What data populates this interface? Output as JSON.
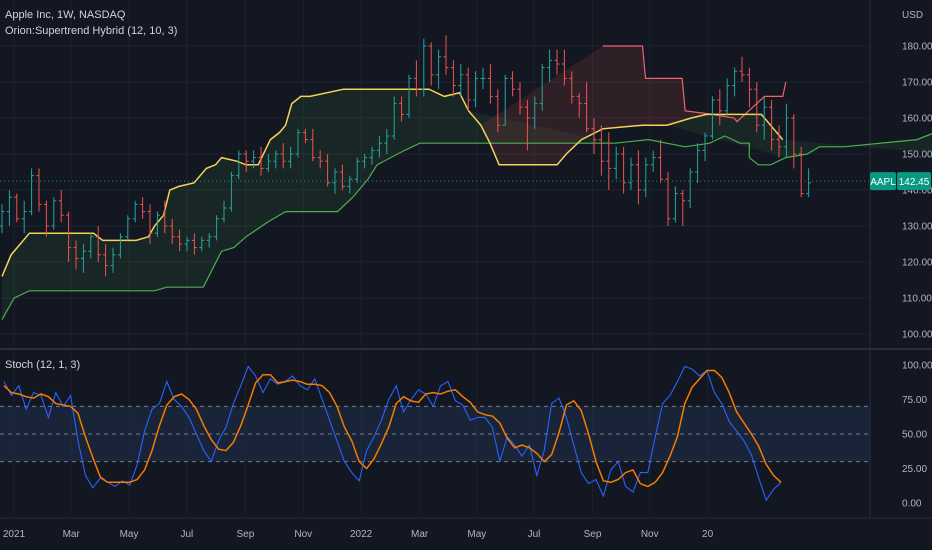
{
  "header": {
    "symbol_line": "Apple Inc, 1W, NASDAQ",
    "indicator_label": "Orion:Supertrend Hybrid (12, 10, 3)",
    "stoch_label": "Stoch (12, 1, 3)",
    "currency": "USD"
  },
  "price_tag": {
    "symbol": "AAPL",
    "value": "142.45",
    "color": "#089981"
  },
  "colors": {
    "background": "#131722",
    "up_bar": "#26a69a",
    "down_bar": "#ef5350",
    "supertrend_line": "#f5d35a",
    "lower_band": "#4caf50",
    "upper_band": "#f0626c",
    "stoch_k": "#2962ff",
    "stoch_d": "#f57c00",
    "stoch_band": "#1f2f4a"
  },
  "chart_data": [
    {
      "type": "ohlc",
      "title": "Apple Inc, 1W, NASDAQ",
      "ylabel": "USD",
      "ylim": [
        95,
        186
      ],
      "yticks": [
        100,
        110,
        120,
        130,
        140,
        150,
        160,
        170,
        180
      ],
      "xlabels": [
        "2021",
        "Mar",
        "May",
        "Jul",
        "Sep",
        "Nov",
        "2022",
        "Mar",
        "May",
        "Jul",
        "Sep",
        "Nov",
        "20"
      ],
      "last_price": 142.45,
      "bars": [
        [
          130,
          136,
          128,
          134
        ],
        [
          134,
          140,
          130,
          138
        ],
        [
          138,
          139,
          131,
          132
        ],
        [
          132,
          137,
          128,
          134
        ],
        [
          134,
          146,
          133,
          144
        ],
        [
          144,
          146,
          134,
          136
        ],
        [
          136,
          137,
          127,
          130
        ],
        [
          130,
          138,
          129,
          137
        ],
        [
          137,
          140,
          131,
          133
        ],
        [
          133,
          134,
          120,
          124
        ],
        [
          124,
          126,
          118,
          121
        ],
        [
          121,
          125,
          117,
          123
        ],
        [
          123,
          128,
          121,
          127
        ],
        [
          127,
          130,
          120,
          122
        ],
        [
          122,
          125,
          116,
          119
        ],
        [
          119,
          124,
          117,
          122
        ],
        [
          122,
          128,
          121,
          127
        ],
        [
          127,
          133,
          126,
          132
        ],
        [
          132,
          137,
          131,
          136
        ],
        [
          136,
          138,
          132,
          134
        ],
        [
          134,
          136,
          125,
          128
        ],
        [
          128,
          134,
          127,
          133
        ],
        [
          133,
          137,
          128,
          130
        ],
        [
          130,
          132,
          125,
          127
        ],
        [
          127,
          129,
          123,
          125
        ],
        [
          125,
          127,
          123,
          126
        ],
        [
          126,
          128,
          122,
          124
        ],
        [
          124,
          127,
          123,
          126
        ],
        [
          126,
          128,
          124,
          127
        ],
        [
          127,
          133,
          126,
          132
        ],
        [
          132,
          137,
          131,
          135
        ],
        [
          135,
          145,
          134,
          144
        ],
        [
          144,
          151,
          143,
          150
        ],
        [
          150,
          151,
          145,
          148
        ],
        [
          148,
          151,
          146,
          149
        ],
        [
          149,
          152,
          144,
          146
        ],
        [
          146,
          150,
          145,
          148
        ],
        [
          148,
          151,
          146,
          150
        ],
        [
          150,
          153,
          146,
          148
        ],
        [
          148,
          152,
          146,
          150
        ],
        [
          150,
          157,
          149,
          156
        ],
        [
          156,
          157,
          153,
          154
        ],
        [
          154,
          157,
          148,
          149
        ],
        [
          149,
          151,
          146,
          148
        ],
        [
          148,
          150,
          141,
          142
        ],
        [
          142,
          146,
          139,
          145
        ],
        [
          145,
          147,
          140,
          141
        ],
        [
          141,
          144,
          139,
          143
        ],
        [
          143,
          149,
          142,
          148
        ],
        [
          148,
          150,
          146,
          149
        ],
        [
          149,
          152,
          147,
          151
        ],
        [
          151,
          155,
          149,
          153
        ],
        [
          153,
          157,
          150,
          155
        ],
        [
          155,
          166,
          154,
          164
        ],
        [
          164,
          166,
          159,
          161
        ],
        [
          161,
          172,
          160,
          171
        ],
        [
          171,
          176,
          166,
          168
        ],
        [
          168,
          182,
          166,
          180
        ],
        [
          180,
          181,
          169,
          172
        ],
        [
          172,
          179,
          168,
          177
        ],
        [
          177,
          183,
          172,
          174
        ],
        [
          174,
          176,
          166,
          169
        ],
        [
          169,
          175,
          166,
          172
        ],
        [
          172,
          174,
          162,
          165
        ],
        [
          165,
          173,
          163,
          171
        ],
        [
          171,
          174,
          168,
          171
        ],
        [
          171,
          175,
          164,
          166
        ],
        [
          166,
          168,
          156,
          158
        ],
        [
          158,
          172,
          158,
          171
        ],
        [
          171,
          173,
          166,
          168
        ],
        [
          168,
          170,
          161,
          163
        ],
        [
          163,
          165,
          151,
          160
        ],
        [
          160,
          166,
          157,
          164
        ],
        [
          164,
          175,
          162,
          174
        ],
        [
          174,
          179,
          170,
          176
        ],
        [
          176,
          179,
          172,
          175
        ],
        [
          175,
          179,
          169,
          171
        ],
        [
          171,
          173,
          164,
          166
        ],
        [
          166,
          167,
          160,
          164
        ],
        [
          164,
          170,
          156,
          157
        ],
        [
          157,
          160,
          150,
          154
        ],
        [
          154,
          158,
          144,
          148
        ],
        [
          148,
          156,
          140,
          146
        ],
        [
          146,
          152,
          143,
          150
        ],
        [
          150,
          152,
          139,
          142
        ],
        [
          142,
          149,
          140,
          147
        ],
        [
          147,
          151,
          136,
          140
        ],
        [
          140,
          149,
          138,
          147
        ],
        [
          147,
          151,
          145,
          149
        ],
        [
          149,
          154,
          142,
          143
        ],
        [
          143,
          145,
          130,
          132
        ],
        [
          132,
          141,
          131,
          139
        ],
        [
          139,
          140,
          130,
          137
        ],
        [
          137,
          146,
          135,
          145
        ],
        [
          145,
          153,
          142,
          151
        ],
        [
          151,
          156,
          148,
          155
        ],
        [
          155,
          166,
          154,
          165
        ],
        [
          165,
          168,
          158,
          162
        ],
        [
          162,
          171,
          161,
          169
        ],
        [
          169,
          174,
          166,
          173
        ],
        [
          173,
          177,
          170,
          172
        ],
        [
          172,
          174,
          163,
          168
        ],
        [
          168,
          170,
          156,
          158
        ],
        [
          158,
          166,
          154,
          163
        ],
        [
          163,
          165,
          151,
          154
        ],
        [
          154,
          158,
          149,
          152
        ],
        [
          152,
          164,
          149,
          160
        ],
        [
          160,
          161,
          146,
          150
        ],
        [
          150,
          152,
          138,
          139
        ],
        [
          139,
          146,
          138,
          142
        ]
      ],
      "supertrend": [
        [
          0,
          116
        ],
        [
          3,
          122
        ],
        [
          6,
          125
        ],
        [
          9,
          128
        ],
        [
          30,
          128
        ],
        [
          33,
          126
        ],
        [
          44,
          126
        ],
        [
          48,
          127
        ],
        [
          50,
          130
        ],
        [
          53,
          133
        ],
        [
          55,
          140
        ],
        [
          58,
          141
        ],
        [
          63,
          142
        ],
        [
          67,
          146
        ],
        [
          70,
          147
        ],
        [
          72,
          149
        ],
        [
          77,
          148
        ],
        [
          80,
          147
        ],
        [
          84,
          147
        ],
        [
          88,
          154
        ],
        [
          91,
          156
        ],
        [
          93,
          158
        ],
        [
          95,
          164
        ],
        [
          98,
          166
        ],
        [
          101,
          166
        ],
        [
          112,
          168
        ],
        [
          140,
          168
        ],
        [
          145,
          166
        ],
        [
          150,
          167
        ],
        [
          153,
          162
        ],
        [
          157,
          158
        ],
        [
          160,
          153
        ],
        [
          163,
          147
        ],
        [
          182,
          147
        ],
        [
          185,
          150
        ],
        [
          190,
          154
        ],
        [
          197,
          157
        ],
        [
          210,
          158
        ],
        [
          218,
          158
        ],
        [
          226,
          160
        ],
        [
          231,
          161
        ],
        [
          249,
          161
        ],
        [
          253,
          157
        ],
        [
          256,
          154
        ]
      ],
      "lower_band": [
        [
          0,
          104
        ],
        [
          4,
          110
        ],
        [
          9,
          112
        ],
        [
          50,
          112
        ],
        [
          54,
          113
        ],
        [
          66,
          113
        ],
        [
          69,
          118
        ],
        [
          72,
          123
        ],
        [
          76,
          124
        ],
        [
          80,
          127
        ],
        [
          87,
          131
        ],
        [
          93,
          134
        ],
        [
          110,
          134
        ],
        [
          115,
          138
        ],
        [
          120,
          143
        ],
        [
          123,
          147
        ],
        [
          132,
          151
        ],
        [
          137,
          153
        ],
        [
          141,
          153
        ],
        [
          154,
          153
        ],
        [
          201,
          153
        ],
        [
          212,
          154
        ],
        [
          224,
          152
        ],
        [
          232,
          153
        ],
        [
          237,
          155
        ],
        [
          242,
          153
        ],
        [
          245,
          153
        ],
        [
          245,
          149
        ],
        [
          248,
          147
        ],
        [
          252,
          147
        ],
        [
          257,
          149
        ],
        [
          264,
          150
        ],
        [
          268,
          152
        ],
        [
          276,
          152
        ],
        [
          300,
          154
        ],
        [
          309,
          157
        ],
        [
          316,
          158
        ],
        [
          342,
          158
        ],
        [
          346,
          154
        ],
        [
          350,
          150
        ],
        [
          361,
          146
        ],
        [
          372,
          145
        ]
      ],
      "upper_band": [
        [
          197,
          180
        ],
        [
          210,
          180
        ],
        [
          211,
          171
        ],
        [
          223,
          171
        ],
        [
          224,
          162
        ],
        [
          233,
          161
        ],
        [
          240,
          160
        ],
        [
          241,
          159
        ],
        [
          250,
          166
        ],
        [
          256,
          166
        ],
        [
          257,
          170
        ]
      ]
    },
    {
      "type": "line",
      "title": "Stoch (12, 1, 3)",
      "ylim": [
        -5,
        105
      ],
      "yticks": [
        0,
        25,
        50,
        75,
        100
      ],
      "band": [
        30,
        70
      ],
      "dashed_levels": [
        30,
        50,
        70
      ],
      "series": [
        {
          "name": "%K",
          "values": [
            88,
            78,
            85,
            68,
            80,
            78,
            62,
            80,
            70,
            78,
            45,
            20,
            11,
            18,
            15,
            12,
            16,
            13,
            28,
            52,
            68,
            72,
            88,
            75,
            70,
            62,
            50,
            38,
            30,
            45,
            55,
            72,
            85,
            99,
            92,
            80,
            90,
            86,
            88,
            92,
            85,
            82,
            90,
            75,
            60,
            45,
            30,
            22,
            16,
            38,
            48,
            60,
            75,
            85,
            66,
            75,
            82,
            79,
            70,
            85,
            88,
            74,
            71,
            60,
            62,
            62,
            55,
            30,
            48,
            42,
            34,
            42,
            20,
            38,
            72,
            76,
            62,
            42,
            22,
            14,
            17,
            5,
            24,
            30,
            12,
            8,
            22,
            22,
            48,
            72,
            78,
            88,
            99,
            97,
            92,
            96,
            80,
            72,
            59,
            52,
            45,
            35,
            18,
            2,
            10,
            15
          ]
        },
        {
          "name": "%D",
          "values": [
            85,
            80,
            79,
            77,
            76,
            79,
            77,
            72,
            71,
            70,
            65,
            48,
            33,
            19,
            15,
            15,
            15,
            15,
            17,
            24,
            38,
            56,
            71,
            77,
            79,
            75,
            68,
            56,
            46,
            39,
            38,
            44,
            56,
            71,
            87,
            93,
            93,
            87,
            88,
            89,
            88,
            86,
            86,
            85,
            80,
            70,
            55,
            45,
            30,
            25,
            32,
            43,
            55,
            72,
            77,
            74,
            73,
            79,
            80,
            79,
            81,
            82,
            77,
            73,
            66,
            64,
            63,
            58,
            47,
            40,
            42,
            40,
            36,
            30,
            35,
            51,
            71,
            74,
            67,
            50,
            30,
            16,
            15,
            17,
            22,
            24,
            14,
            12,
            15,
            22,
            34,
            48,
            72,
            84,
            90,
            96,
            96,
            91,
            80,
            66,
            58,
            50,
            41,
            28,
            20,
            15
          ]
        }
      ],
      "xlabels": [
        "2021",
        "Mar",
        "May",
        "Jul",
        "Sep",
        "Nov",
        "2022",
        "Mar",
        "May",
        "Jul",
        "Sep",
        "Nov",
        "20"
      ]
    }
  ]
}
